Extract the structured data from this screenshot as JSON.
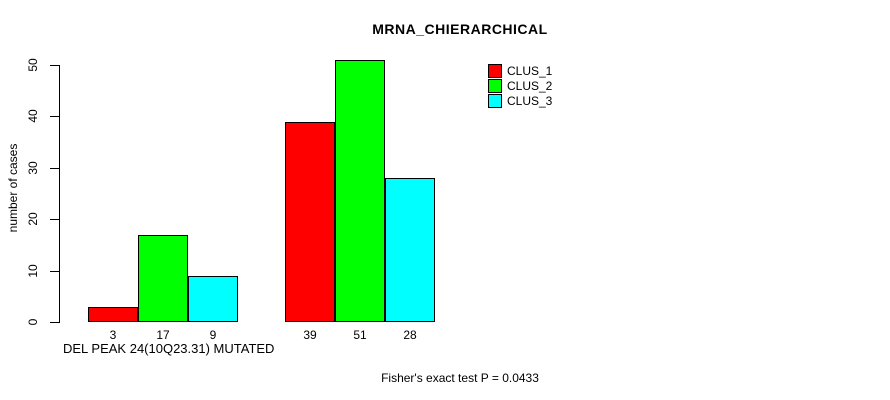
{
  "chart_data": {
    "type": "bar",
    "title": "MRNA_CHIERARCHICAL",
    "ylabel": "number of cases",
    "xlabel": "",
    "ylim": [
      0,
      50
    ],
    "yticks": [
      0,
      10,
      20,
      30,
      40,
      50
    ],
    "categories": [
      "DEL PEAK 24(10Q23.31) MUTATED",
      ""
    ],
    "series": [
      {
        "name": "CLUS_1",
        "color": "#ff0000",
        "values": [
          3,
          39
        ]
      },
      {
        "name": "CLUS_2",
        "color": "#00ff00",
        "values": [
          17,
          51
        ]
      },
      {
        "name": "CLUS_3",
        "color": "#00ffff",
        "values": [
          9,
          28
        ]
      }
    ],
    "bar_value_labels": [
      [
        3,
        17,
        9
      ],
      [
        39,
        51,
        28
      ]
    ],
    "annotation": "Fisher's exact test P = 0.0433",
    "legend_position": "top-right",
    "grid": false,
    "background_color": "#ffffff",
    "axis_color": "#000000"
  }
}
